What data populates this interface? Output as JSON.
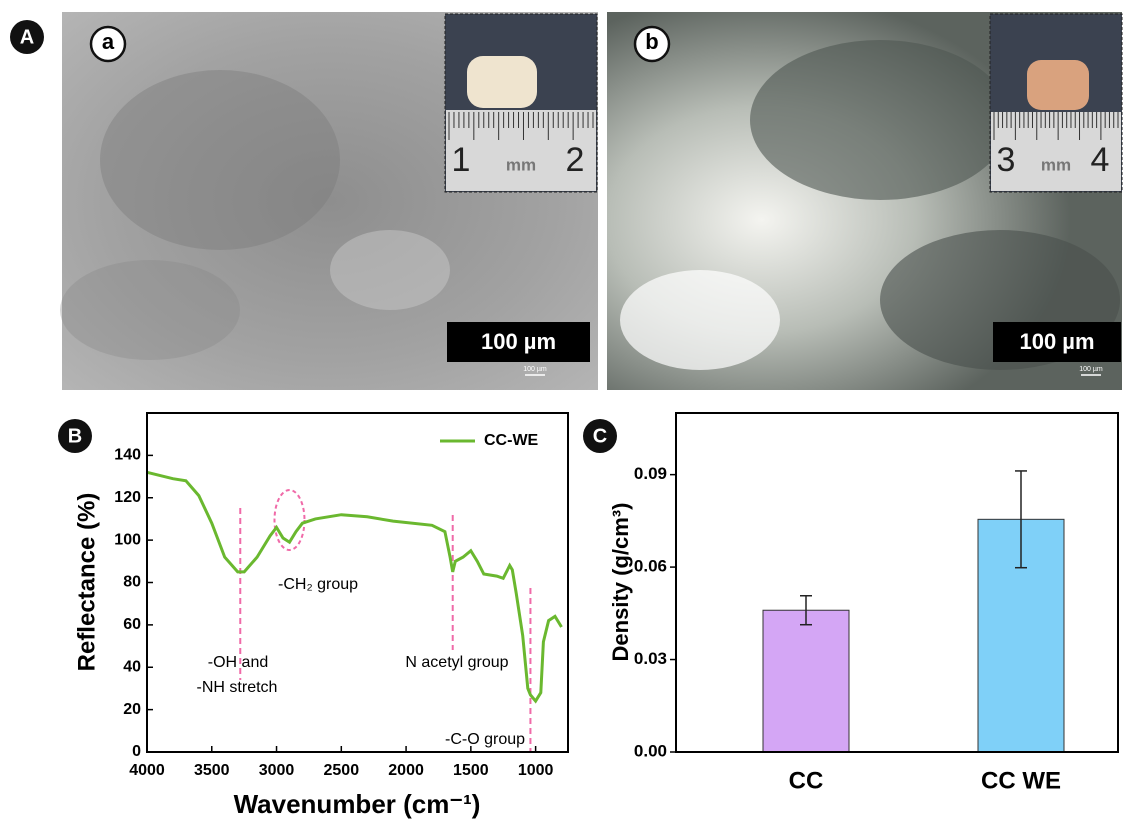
{
  "panel_labels": [
    "A",
    "B",
    "C"
  ],
  "photos": [
    {
      "label": "a",
      "scale_bar": "100 µm",
      "scale_small": "100 µm",
      "ruler": [
        "1",
        "mm",
        "2"
      ]
    },
    {
      "label": "b",
      "scale_bar": "100 µm",
      "scale_small": "100 µm",
      "ruler": [
        "3",
        "mm",
        "4"
      ]
    }
  ],
  "chart_data": [
    {
      "type": "line",
      "xlabel": "Wavenumber (cm⁻¹)",
      "ylabel": "Reflectance (%)",
      "x": [
        4000,
        3800,
        3700,
        3600,
        3500,
        3400,
        3300,
        3250,
        3150,
        3050,
        3000,
        2950,
        2900,
        2850,
        2800,
        2700,
        2500,
        2300,
        2100,
        1800,
        1700,
        1660,
        1640,
        1620,
        1560,
        1500,
        1450,
        1400,
        1300,
        1250,
        1200,
        1180,
        1150,
        1100,
        1060,
        1040,
        1000,
        960,
        940,
        900,
        850,
        800
      ],
      "series": [
        {
          "name": "CC-WE",
          "color": "#6ab82f",
          "values": [
            132,
            129,
            128,
            121,
            108,
            92,
            85,
            85,
            92,
            102,
            106,
            101,
            99,
            104,
            108,
            110,
            112,
            111,
            109,
            107,
            104,
            92,
            85,
            90,
            92,
            95,
            90,
            84,
            83,
            82,
            88,
            86,
            75,
            55,
            30,
            27,
            24,
            28,
            52,
            62,
            64,
            59
          ]
        }
      ],
      "xlim": [
        4000,
        750
      ],
      "xticks": [
        4000,
        3500,
        3000,
        2500,
        2000,
        1500,
        1000
      ],
      "ylim": [
        0,
        160
      ],
      "yticks": [
        0,
        20,
        40,
        60,
        80,
        100,
        120,
        140
      ],
      "reference_lines": [
        3280,
        1640,
        1040
      ],
      "annotations": [
        "-OH and",
        "-NH stretch",
        "-CH₂ group",
        "N acetyl group",
        "-C-O group"
      ]
    },
    {
      "type": "bar",
      "ylabel": "Density (g/cm³)",
      "categories": [
        "CC",
        "CC WE"
      ],
      "values": [
        0.046,
        0.0755
      ],
      "errors": [
        0.0047,
        0.0157
      ],
      "colors": [
        "#d4a6f5",
        "#7fd0f8"
      ],
      "ylim": [
        0,
        0.11
      ],
      "yticks": [
        {
          "value": 0,
          "label": "0.00"
        },
        {
          "value": 0.03,
          "label": "0.03"
        },
        {
          "value": 0.06,
          "label": "0.06"
        },
        {
          "value": 0.09,
          "label": "0.09"
        }
      ]
    }
  ]
}
